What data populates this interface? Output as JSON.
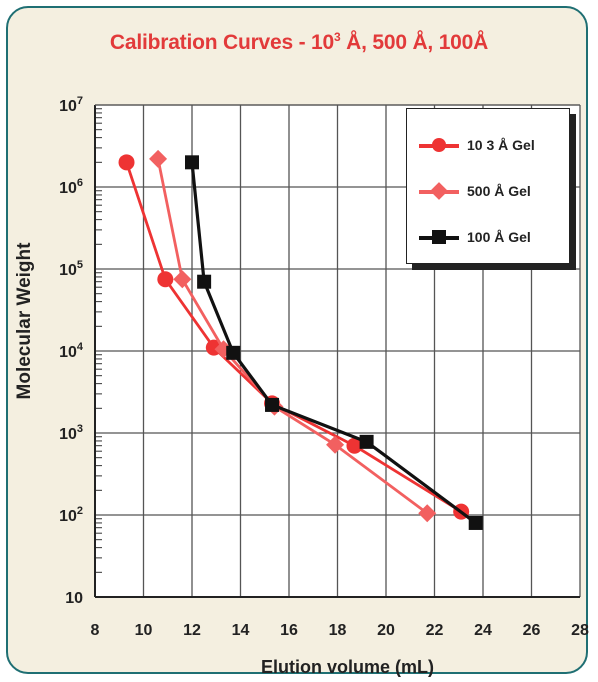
{
  "title": {
    "prefix": "Calibration Curves - 10",
    "exp": "3",
    "unit1": "Å",
    "mid": ", 500 ",
    "unit2": "Å",
    "mid2": ", 100",
    "unit3": "Å"
  },
  "chart_data": {
    "type": "line",
    "title": "Calibration Curves - 10³ Å, 500 Å, 100Å",
    "xlabel": "Elution volume (mL)",
    "ylabel": "Molecular Weight",
    "xlim": [
      8,
      28
    ],
    "ylim": [
      10,
      10000000
    ],
    "y_scale": "log",
    "x_ticks": [
      8,
      10,
      12,
      14,
      16,
      18,
      20,
      22,
      24,
      26,
      28
    ],
    "y_ticks": [
      "10",
      "10^2",
      "10^3",
      "10^4",
      "10^5",
      "10^6",
      "10^7"
    ],
    "grid": true,
    "legend": "top-right",
    "series": [
      {
        "name": "10 3 Å Gel",
        "color": "#ee3333",
        "marker": "circle",
        "x": [
          9.3,
          10.9,
          12.9,
          15.3,
          18.7,
          23.1
        ],
        "y": [
          2000000,
          75000,
          11000,
          2300,
          700,
          110
        ]
      },
      {
        "name": "500 Å Gel",
        "color": "#f26060",
        "marker": "diamond",
        "x": [
          10.6,
          11.6,
          13.3,
          15.4,
          17.9,
          21.7
        ],
        "y": [
          2200000,
          75000,
          10500,
          2100,
          720,
          105
        ]
      },
      {
        "name": "100 Å Gel",
        "color": "#111111",
        "marker": "square",
        "x": [
          12.0,
          12.5,
          13.7,
          15.3,
          19.2,
          23.7
        ],
        "y": [
          2000000,
          70000,
          9500,
          2200,
          780,
          80
        ]
      }
    ]
  },
  "legend_items": [
    {
      "label": "10 3 Å Gel"
    },
    {
      "label": "500 Å Gel"
    },
    {
      "label": "100 Å Gel"
    }
  ],
  "axis_text": {
    "xlabel": "Elution volume (mL)",
    "ylabel": "Molecular Weight"
  }
}
